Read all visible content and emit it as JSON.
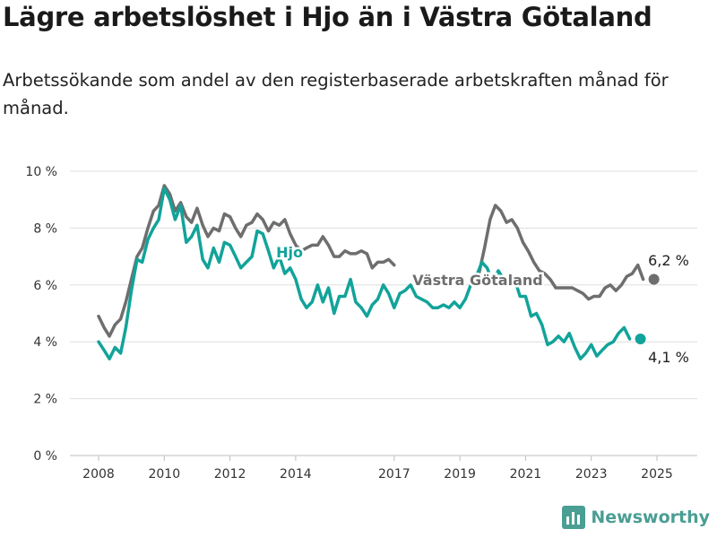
{
  "header": {
    "title": "Lägre arbetslöshet i Hjo än i Västra Götaland",
    "subtitle": "Arbetssökande som andel av den registerbaserade arbetskraften månad för månad."
  },
  "brand": {
    "name": "Newsworthy"
  },
  "chart_data": {
    "type": "line",
    "title": "",
    "xlabel": "",
    "ylabel": "",
    "ylim": [
      0,
      10
    ],
    "y_ticks": [
      "0 %",
      "2 %",
      "4 %",
      "6 %",
      "8 %",
      "10 %"
    ],
    "x_ticks": [
      "2008",
      "2010",
      "2012",
      "2014",
      "2017",
      "2019",
      "2021",
      "2023",
      "2025"
    ],
    "grid": true,
    "colors": {
      "hjo": "#12a39a",
      "vg": "#6e6e6e"
    },
    "series": [
      {
        "name": "Hjo",
        "end_label": "4,1 %",
        "points": [
          [
            2008.0,
            4.0
          ],
          [
            2008.17,
            3.7
          ],
          [
            2008.33,
            3.4
          ],
          [
            2008.5,
            3.8
          ],
          [
            2008.67,
            3.6
          ],
          [
            2008.83,
            4.5
          ],
          [
            2009.0,
            5.8
          ],
          [
            2009.17,
            6.9
          ],
          [
            2009.33,
            6.8
          ],
          [
            2009.5,
            7.6
          ],
          [
            2009.67,
            8.0
          ],
          [
            2009.83,
            8.3
          ],
          [
            2010.0,
            9.4
          ],
          [
            2010.17,
            9.0
          ],
          [
            2010.33,
            8.3
          ],
          [
            2010.5,
            8.8
          ],
          [
            2010.67,
            7.5
          ],
          [
            2010.83,
            7.7
          ],
          [
            2011.0,
            8.1
          ],
          [
            2011.17,
            6.9
          ],
          [
            2011.33,
            6.6
          ],
          [
            2011.5,
            7.3
          ],
          [
            2011.67,
            6.8
          ],
          [
            2011.83,
            7.5
          ],
          [
            2012.0,
            7.4
          ],
          [
            2012.17,
            7.0
          ],
          [
            2012.33,
            6.6
          ],
          [
            2012.5,
            6.8
          ],
          [
            2012.67,
            7.0
          ],
          [
            2012.83,
            7.9
          ],
          [
            2013.0,
            7.8
          ],
          [
            2013.17,
            7.2
          ],
          [
            2013.33,
            6.6
          ],
          [
            2013.5,
            7.0
          ],
          [
            2013.67,
            6.4
          ],
          [
            2013.83,
            6.6
          ],
          [
            2014.0,
            6.2
          ],
          [
            2014.17,
            5.5
          ],
          [
            2014.33,
            5.2
          ],
          [
            2014.5,
            5.4
          ],
          [
            2014.67,
            6.0
          ],
          [
            2014.83,
            5.4
          ],
          [
            2015.0,
            5.9
          ],
          [
            2015.17,
            5.0
          ],
          [
            2015.33,
            5.6
          ],
          [
            2015.5,
            5.6
          ],
          [
            2015.67,
            6.2
          ],
          [
            2015.83,
            5.4
          ],
          [
            2016.0,
            5.2
          ],
          [
            2016.17,
            4.9
          ],
          [
            2016.33,
            5.3
          ],
          [
            2016.5,
            5.5
          ],
          [
            2016.67,
            6.0
          ],
          [
            2016.83,
            5.7
          ],
          [
            2017.0,
            5.2
          ],
          [
            2017.17,
            5.7
          ],
          [
            2017.33,
            5.8
          ],
          [
            2017.5,
            6.0
          ],
          [
            2017.67,
            5.6
          ],
          [
            2017.83,
            5.5
          ],
          [
            2018.0,
            5.4
          ],
          [
            2018.17,
            5.2
          ],
          [
            2018.33,
            5.2
          ],
          [
            2018.5,
            5.3
          ],
          [
            2018.67,
            5.2
          ],
          [
            2018.83,
            5.4
          ],
          [
            2019.0,
            5.2
          ],
          [
            2019.17,
            5.5
          ],
          [
            2019.33,
            6.0
          ],
          [
            2019.5,
            6.3
          ],
          [
            2019.67,
            6.8
          ],
          [
            2019.83,
            6.6
          ],
          [
            2020.0,
            6.1
          ],
          [
            2020.17,
            6.5
          ],
          [
            2020.33,
            6.2
          ],
          [
            2020.5,
            6.0
          ],
          [
            2020.67,
            6.2
          ],
          [
            2020.83,
            5.6
          ],
          [
            2021.0,
            5.6
          ],
          [
            2021.17,
            4.9
          ],
          [
            2021.33,
            5.0
          ],
          [
            2021.5,
            4.6
          ],
          [
            2021.67,
            3.9
          ],
          [
            2021.83,
            4.0
          ],
          [
            2022.0,
            4.2
          ],
          [
            2022.17,
            4.0
          ],
          [
            2022.33,
            4.3
          ],
          [
            2022.5,
            3.8
          ],
          [
            2022.67,
            3.4
          ],
          [
            2022.83,
            3.6
          ],
          [
            2023.0,
            3.9
          ],
          [
            2023.17,
            3.5
          ],
          [
            2023.33,
            3.7
          ],
          [
            2023.5,
            3.9
          ],
          [
            2023.67,
            4.0
          ],
          [
            2023.83,
            4.3
          ],
          [
            2024.0,
            4.5
          ],
          [
            2024.17,
            4.1
          ]
        ]
      },
      {
        "name": "Västra Götaland",
        "end_label": "6,2 %",
        "points": [
          [
            2008.0,
            4.9
          ],
          [
            2008.17,
            4.5
          ],
          [
            2008.33,
            4.2
          ],
          [
            2008.5,
            4.6
          ],
          [
            2008.67,
            4.8
          ],
          [
            2008.83,
            5.4
          ],
          [
            2009.0,
            6.2
          ],
          [
            2009.17,
            7.0
          ],
          [
            2009.33,
            7.3
          ],
          [
            2009.5,
            8.0
          ],
          [
            2009.67,
            8.6
          ],
          [
            2009.83,
            8.8
          ],
          [
            2010.0,
            9.5
          ],
          [
            2010.17,
            9.2
          ],
          [
            2010.33,
            8.6
          ],
          [
            2010.5,
            8.9
          ],
          [
            2010.67,
            8.4
          ],
          [
            2010.83,
            8.2
          ],
          [
            2011.0,
            8.7
          ],
          [
            2011.17,
            8.1
          ],
          [
            2011.33,
            7.7
          ],
          [
            2011.5,
            8.0
          ],
          [
            2011.67,
            7.9
          ],
          [
            2011.83,
            8.5
          ],
          [
            2012.0,
            8.4
          ],
          [
            2012.17,
            8.0
          ],
          [
            2012.33,
            7.7
          ],
          [
            2012.5,
            8.1
          ],
          [
            2012.67,
            8.2
          ],
          [
            2012.83,
            8.5
          ],
          [
            2013.0,
            8.3
          ],
          [
            2013.17,
            7.9
          ],
          [
            2013.33,
            8.2
          ],
          [
            2013.5,
            8.1
          ],
          [
            2013.67,
            8.3
          ],
          [
            2013.83,
            7.8
          ],
          [
            2014.0,
            7.4
          ],
          [
            2014.17,
            7.2
          ],
          [
            2014.33,
            7.3
          ],
          [
            2014.5,
            7.4
          ],
          [
            2014.67,
            7.4
          ],
          [
            2014.83,
            7.7
          ],
          [
            2015.0,
            7.4
          ],
          [
            2015.17,
            7.0
          ],
          [
            2015.33,
            7.0
          ],
          [
            2015.5,
            7.2
          ],
          [
            2015.67,
            7.1
          ],
          [
            2015.83,
            7.1
          ],
          [
            2016.0,
            7.2
          ],
          [
            2016.17,
            7.1
          ],
          [
            2016.33,
            6.6
          ],
          [
            2016.5,
            6.8
          ],
          [
            2016.67,
            6.8
          ],
          [
            2016.83,
            6.9
          ],
          [
            2017.0,
            6.7
          ]
        ]
      },
      {
        "name": "Västra Götaland",
        "segment": 2,
        "points": [
          [
            2019.58,
            6.4
          ],
          [
            2019.75,
            7.3
          ],
          [
            2019.92,
            8.3
          ],
          [
            2020.08,
            8.8
          ],
          [
            2020.25,
            8.6
          ],
          [
            2020.42,
            8.2
          ],
          [
            2020.58,
            8.3
          ],
          [
            2020.75,
            8.0
          ],
          [
            2020.92,
            7.5
          ],
          [
            2021.08,
            7.2
          ],
          [
            2021.25,
            6.8
          ],
          [
            2021.42,
            6.5
          ],
          [
            2021.58,
            6.4
          ],
          [
            2021.75,
            6.2
          ],
          [
            2021.92,
            5.9
          ],
          [
            2022.08,
            5.9
          ],
          [
            2022.25,
            5.9
          ],
          [
            2022.42,
            5.9
          ],
          [
            2022.58,
            5.8
          ],
          [
            2022.75,
            5.7
          ],
          [
            2022.92,
            5.5
          ],
          [
            2023.08,
            5.6
          ],
          [
            2023.25,
            5.6
          ],
          [
            2023.42,
            5.9
          ],
          [
            2023.58,
            6.0
          ],
          [
            2023.75,
            5.8
          ],
          [
            2023.92,
            6.0
          ],
          [
            2024.08,
            6.3
          ],
          [
            2024.25,
            6.4
          ],
          [
            2024.42,
            6.7
          ],
          [
            2024.58,
            6.2
          ]
        ]
      }
    ]
  }
}
